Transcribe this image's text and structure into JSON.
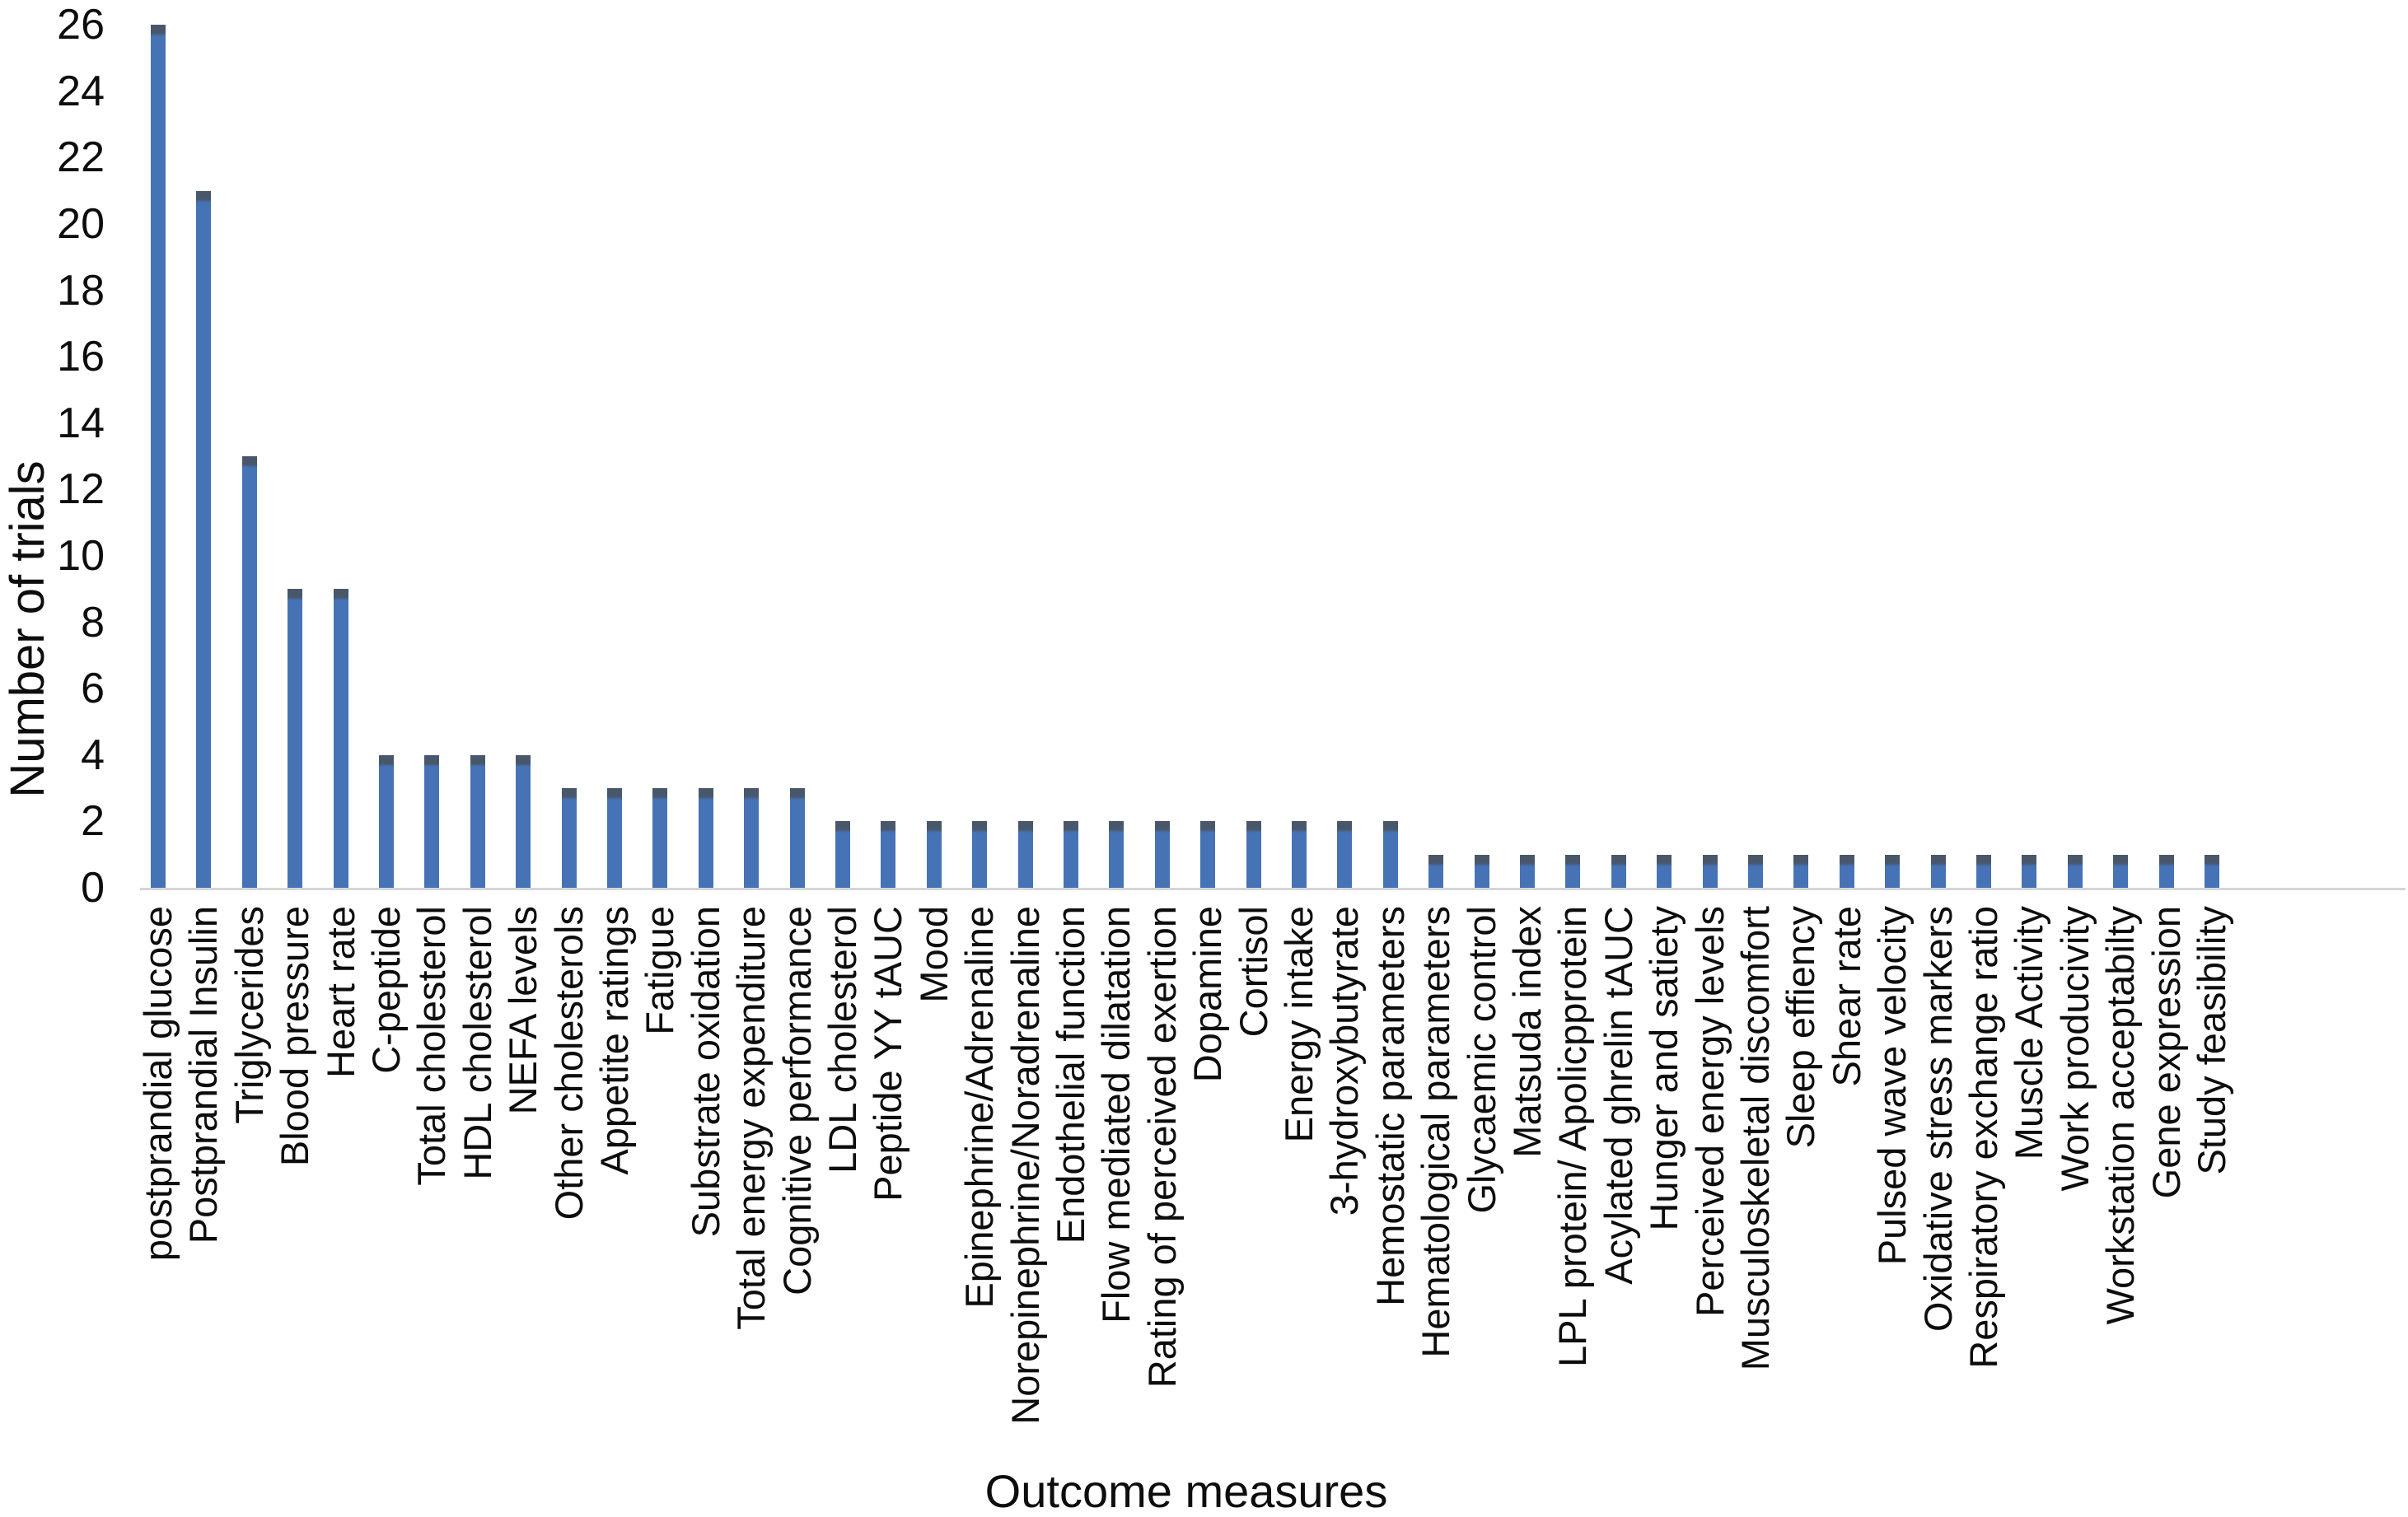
{
  "chart_data": {
    "type": "bar",
    "title": "",
    "xlabel": "Outcome measures",
    "ylabel": "Number of trials",
    "ylim": [
      0,
      26
    ],
    "ytick_step": 2,
    "grid": false,
    "legend_position": "none",
    "bar_color": "#4673b5",
    "bar_cap_color": "#49576b",
    "axis_line_color": "#d6d6d6",
    "text_color": "#0d0d0d",
    "categories": [
      "postprandial glucose",
      "Postprandial Insulin",
      "Triglycerides",
      "Blood pressure",
      "Heart rate",
      "C-peptide",
      "Total cholesterol",
      "HDL cholesterol",
      "NEFA levels",
      "Other cholesterols",
      "Appetite ratings",
      "Fatigue",
      "Substrate oxidation",
      "Total energy expenditure",
      "Cognitive performance",
      "LDL cholesterol",
      "Peptide YY tAUC",
      "Mood",
      "Epinephrine/Adrenaline",
      "Norepinephrine/Noradrenaline",
      "Endothelial function",
      "Flow mediated dilatation",
      "Rating of perceived exertion",
      "Dopamine",
      "Cortisol",
      "Energy intake",
      "3-hydroxybutyrate",
      "Hemostatic parameters",
      "Hematological parameters",
      "Glycaemic control",
      "Matsuda index",
      "LPL protein/ Apolicpprotein",
      "Acylated ghrelin tAUC",
      "Hunger and satiety",
      "Perceived energy levels",
      "Musculoskeletal discomfort",
      "Sleep effiency",
      "Shear rate",
      "Pulsed wave velocity",
      "Oxidative stress markers",
      "Respiratory exchange ratio",
      "Muscle Activity",
      "Work producivity",
      "Workstation acceptabilty",
      "Gene expression",
      "Study feasibility"
    ],
    "values": [
      26,
      21,
      13,
      9,
      9,
      4,
      4,
      4,
      4,
      3,
      3,
      3,
      3,
      3,
      3,
      2,
      2,
      2,
      2,
      2,
      2,
      2,
      2,
      2,
      2,
      2,
      2,
      2,
      1,
      1,
      1,
      1,
      1,
      1,
      1,
      1,
      1,
      1,
      1,
      1,
      1,
      1,
      1,
      1,
      1,
      1
    ]
  }
}
